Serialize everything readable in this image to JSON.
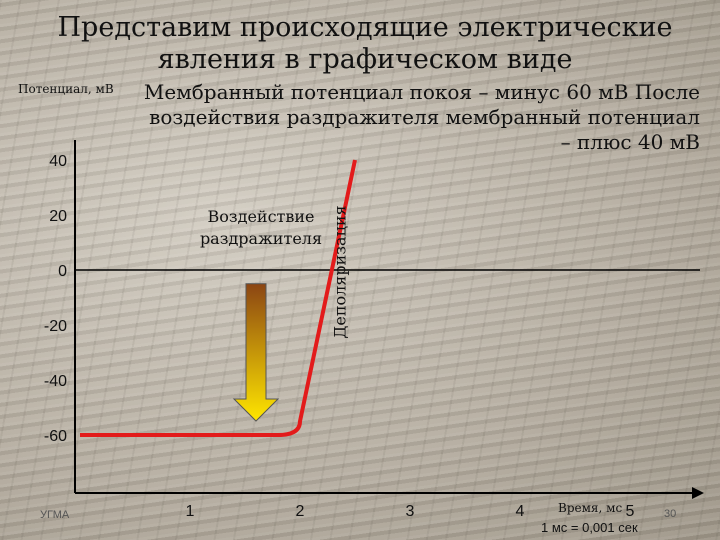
{
  "slide": {
    "title": "Представим происходящие  электрические явления в графическом виде",
    "info": "Мембранный потенциал покоя – минус 60 мВ После  воздействия раздражителя мембранный потенциал – плюс 40 мВ",
    "stimulus_label": "Воздействие раздражителя",
    "depolarization_label": "Деполяризация",
    "x_note": "1 мс = 0,001 сек",
    "footer_left": "УГМА",
    "page_number": "30"
  },
  "chart_data": {
    "type": "line",
    "ylabel": "Потенциал, мВ",
    "xlabel": "Время, мс",
    "yticks": [
      40,
      20,
      0,
      -20,
      -40,
      -60
    ],
    "xticks": [
      1,
      2,
      3,
      4,
      5
    ],
    "xlim": [
      0,
      5.5
    ],
    "ylim": [
      -80,
      60
    ],
    "series": [
      {
        "color": "#e31b1b",
        "points": [
          [
            0,
            -60
          ],
          [
            1.8,
            -60
          ],
          [
            2.0,
            -55
          ],
          [
            2.5,
            40
          ]
        ]
      }
    ],
    "stimulus_arrow": {
      "x": 1.6,
      "from_y": -5,
      "to_y": -60
    }
  },
  "colors": {
    "curve": "#e31b1b",
    "arrow_top": "#8b4513",
    "arrow_bottom": "#ffe600",
    "axis": "#000000"
  }
}
